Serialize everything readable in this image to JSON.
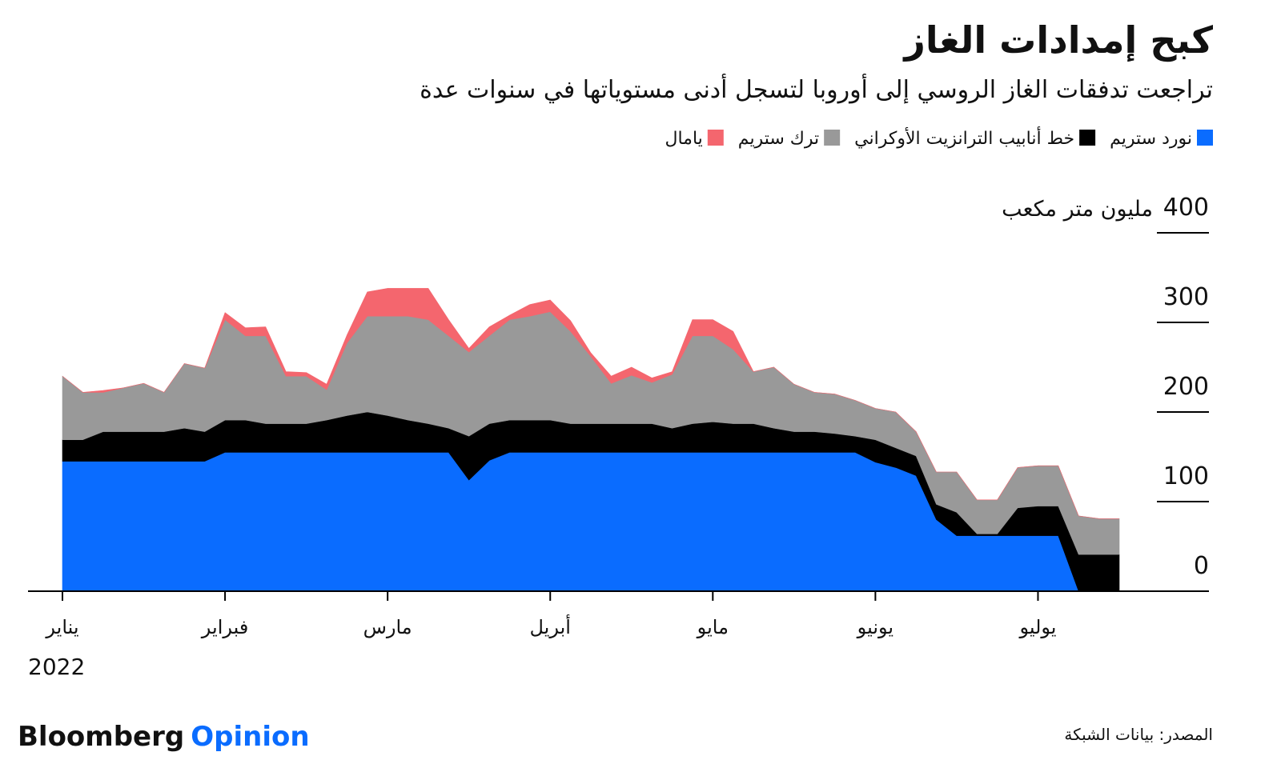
{
  "chart_data": {
    "type": "stacked_area",
    "title": "كبح إمدادات الغاز",
    "subtitle": "تراجعت تدفقات الغاز الروسي إلى أوروبا لتسجل أدنى مستوياتها في سنوات عدة",
    "y_label": "مليون متر مكعب",
    "year": "2022",
    "source": "المصدر: بيانات الشبكة",
    "brand": {
      "name": "Bloomberg",
      "section": "Opinion"
    },
    "categories": [
      "يناير",
      null,
      null,
      null,
      null,
      null,
      null,
      null,
      "فبراير",
      null,
      null,
      null,
      null,
      null,
      null,
      null,
      "مارس",
      null,
      null,
      null,
      null,
      null,
      null,
      null,
      "أبريل",
      null,
      null,
      null,
      null,
      null,
      null,
      null,
      "مايو",
      null,
      null,
      null,
      null,
      null,
      null,
      null,
      "يونيو",
      null,
      null,
      null,
      null,
      null,
      null,
      null,
      "يوليو",
      null,
      null,
      null,
      null
    ],
    "ylim": [
      0,
      400
    ],
    "yticks": [
      0,
      100,
      200,
      300,
      400
    ],
    "series": [
      {
        "name": "نورد ستريم",
        "color": "#0a6cff",
        "values": [
          145,
          145,
          145,
          145,
          145,
          145,
          145,
          145,
          155,
          155,
          155,
          155,
          155,
          155,
          155,
          155,
          155,
          155,
          155,
          155,
          124,
          146,
          155,
          155,
          155,
          155,
          155,
          155,
          155,
          155,
          155,
          155,
          155,
          155,
          155,
          155,
          155,
          155,
          155,
          155,
          144,
          138,
          129,
          80,
          62,
          62,
          62,
          62,
          62,
          62,
          0,
          0,
          0
        ]
      },
      {
        "name": "خط أنابيب الترانزيت الأوكراني",
        "color": "#000000",
        "values": [
          24,
          24,
          33,
          33,
          33,
          33,
          37,
          33,
          36,
          36,
          32,
          32,
          32,
          36,
          41,
          45,
          41,
          36,
          32,
          27,
          49,
          41,
          36,
          36,
          36,
          32,
          32,
          32,
          32,
          32,
          27,
          32,
          34,
          32,
          32,
          27,
          23,
          23,
          21,
          18,
          25,
          22,
          22,
          17,
          26,
          2,
          2,
          31,
          33,
          33,
          41,
          41,
          41
        ]
      },
      {
        "name": "ترك ستريم",
        "color": "#999999",
        "values": [
          71,
          53,
          44,
          49,
          54,
          44,
          72,
          71,
          112,
          94,
          98,
          53,
          53,
          34,
          81,
          107,
          111,
          116,
          116,
          103,
          94,
          98,
          112,
          116,
          121,
          103,
          75,
          45,
          54,
          46,
          60,
          98,
          96,
          83,
          58,
          68,
          53,
          44,
          44,
          40,
          35,
          40,
          27,
          36,
          45,
          38,
          38,
          45,
          45,
          45,
          43,
          40,
          40
        ]
      },
      {
        "name": "يامال",
        "color": "#f4666e",
        "values": [
          0,
          0,
          2,
          0,
          0,
          0,
          0,
          0,
          8,
          9,
          10,
          5,
          4,
          6,
          9,
          27,
          31,
          31,
          35,
          18,
          4,
          10,
          5,
          13,
          13,
          12,
          4,
          8,
          9,
          5,
          3,
          18,
          18,
          20,
          0,
          0,
          0,
          0,
          0,
          0,
          0,
          0,
          0,
          0,
          0,
          0,
          0,
          0,
          0,
          0,
          0,
          0,
          0
        ]
      }
    ]
  }
}
